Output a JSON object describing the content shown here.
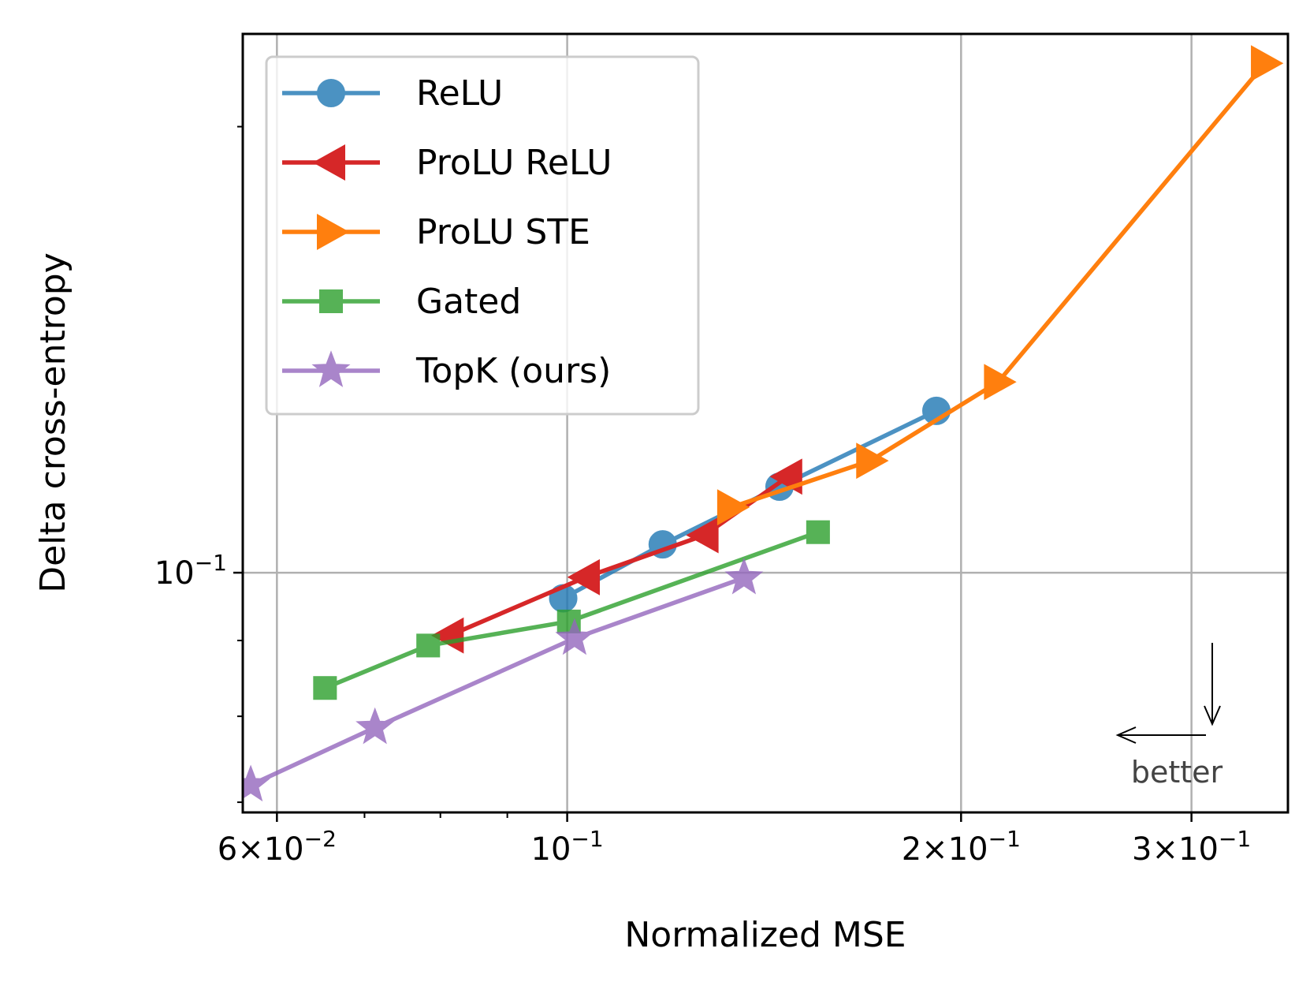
{
  "chart_data": {
    "type": "line",
    "xlabel": "Normalized MSE",
    "ylabel": "Delta cross-entropy",
    "xscale": "log",
    "yscale": "log",
    "xlim": [
      0.0565,
      0.3555
    ],
    "ylim": [
      0.0689,
      0.231
    ],
    "grid": "major",
    "legend_position": "top-left",
    "xticks": [
      {
        "value": 0.06,
        "mantissa": "6",
        "exp": "−2"
      },
      {
        "value": 0.1,
        "mantissa": "",
        "exp": "−1"
      },
      {
        "value": 0.2,
        "mantissa": "2",
        "exp": "−1"
      },
      {
        "value": 0.3,
        "mantissa": "3",
        "exp": "−1"
      }
    ],
    "yticks": [
      {
        "value": 0.1,
        "mantissa": "",
        "exp": "−1"
      }
    ],
    "series": [
      {
        "name": "ReLU",
        "color": "#1f77b4",
        "marker": "circle",
        "alpha": 0.8,
        "x": [
          0.0993,
          0.1183,
          0.1453,
          0.1915
        ],
        "y": [
          0.0961,
          0.1045,
          0.1143,
          0.1286
        ]
      },
      {
        "name": "ProLU ReLU",
        "color": "#d62728",
        "marker": "triangle-left",
        "alpha": 1.0,
        "x": [
          0.0813,
          0.1033,
          0.1273,
          0.1475
        ],
        "y": [
          0.0907,
          0.0993,
          0.106,
          0.1161
        ]
      },
      {
        "name": "ProLU STE",
        "color": "#ff7f0e",
        "marker": "triangle-right",
        "alpha": 1.0,
        "x": [
          0.1335,
          0.1705,
          0.2135,
          0.3415
        ],
        "y": [
          0.1107,
          0.119,
          0.1345,
          0.2207
        ]
      },
      {
        "name": "Gated",
        "color": "#2ca02c",
        "marker": "square",
        "alpha": 0.8,
        "x": [
          0.0653,
          0.0783,
          0.1003,
          0.1555
        ],
        "y": [
          0.0836,
          0.0893,
          0.0927,
          0.1065
        ]
      },
      {
        "name": "TopK (ours)",
        "color": "#9467bd",
        "marker": "star",
        "alpha": 0.8,
        "x": [
          0.0573,
          0.0713,
          0.1013,
          0.1365
        ],
        "y": [
          0.0719,
          0.0786,
          0.0903,
          0.0992
        ]
      }
    ],
    "annotation": "better"
  }
}
